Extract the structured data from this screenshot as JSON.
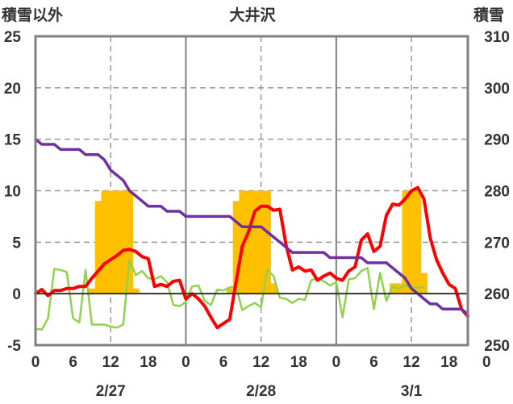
{
  "chart_data": {
    "type": "line",
    "title": "大井沢",
    "ylabel_left": "積雪以外",
    "ylabel_right": "積雪",
    "x_range": [
      0,
      69
    ],
    "x_tick_labels": [
      "0",
      "6",
      "12",
      "18",
      "0",
      "6",
      "12",
      "18",
      "0",
      "6",
      "12",
      "18",
      "0"
    ],
    "x_tick_hours": [
      0,
      6,
      12,
      18,
      24,
      30,
      36,
      42,
      48,
      54,
      60,
      66,
      72
    ],
    "date_labels": [
      {
        "label": "2/27",
        "hour": 12
      },
      {
        "label": "2/28",
        "hour": 36
      },
      {
        "label": "3/1",
        "hour": 60
      }
    ],
    "left_axis": {
      "ylim": [
        -5,
        25
      ],
      "ticks": [
        -5,
        0,
        5,
        10,
        15,
        20,
        25
      ]
    },
    "right_axis": {
      "ylim": [
        250,
        310
      ],
      "ticks": [
        250,
        260,
        270,
        280,
        290,
        300,
        310
      ]
    },
    "colors": {
      "precip": "#ffc000",
      "temperature": "#ff0000",
      "wind": "#92d050",
      "snow_depth": "#7030a0",
      "grid": "#999999",
      "axis": "#808080",
      "zero": "#333333"
    },
    "grid": true,
    "series": [
      {
        "key": "precip",
        "type": "bar",
        "axis": "left",
        "points": [
          [
            9,
            0.5
          ],
          [
            10,
            9
          ],
          [
            11,
            10
          ],
          [
            12,
            10
          ],
          [
            13,
            10
          ],
          [
            14,
            10
          ],
          [
            15,
            10
          ],
          [
            16,
            0.5
          ],
          [
            31,
            0.5
          ],
          [
            32,
            9
          ],
          [
            33,
            10
          ],
          [
            34,
            10
          ],
          [
            35,
            10
          ],
          [
            36,
            10
          ],
          [
            37,
            10
          ],
          [
            38,
            1
          ],
          [
            57,
            1
          ],
          [
            58,
            1
          ],
          [
            59,
            10
          ],
          [
            60,
            10
          ],
          [
            61,
            10
          ],
          [
            62,
            2
          ]
        ]
      },
      {
        "key": "wind",
        "type": "line",
        "axis": "left",
        "points": [
          [
            0,
            -3.4
          ],
          [
            1,
            -3.5
          ],
          [
            2,
            -2.4
          ],
          [
            3,
            2.4
          ],
          [
            4,
            2.3
          ],
          [
            5,
            2.1
          ],
          [
            6,
            -2.4
          ],
          [
            7,
            -2.8
          ],
          [
            8,
            2.3
          ],
          [
            9,
            -3
          ],
          [
            10,
            -3
          ],
          [
            11,
            -3
          ],
          [
            12,
            -3.2
          ],
          [
            13,
            -3.3
          ],
          [
            14,
            -3
          ],
          [
            15,
            3.3
          ],
          [
            16,
            1.8
          ],
          [
            17,
            2.2
          ],
          [
            18,
            1.5
          ],
          [
            19,
            1.4
          ],
          [
            20,
            1.7
          ],
          [
            21,
            1.1
          ],
          [
            22,
            -1.1
          ],
          [
            23,
            -1.2
          ],
          [
            24,
            -0.8
          ],
          [
            25,
            0.7
          ],
          [
            26,
            0.8
          ],
          [
            27,
            -0.7
          ],
          [
            28,
            -1.1
          ],
          [
            29,
            0.4
          ],
          [
            30,
            0.3
          ],
          [
            31,
            0.6
          ],
          [
            32,
            0.7
          ],
          [
            33,
            -1.6
          ],
          [
            34,
            -1.2
          ],
          [
            35,
            -0.9
          ],
          [
            36,
            -1.3
          ],
          [
            37,
            2.3
          ],
          [
            38,
            1.7
          ],
          [
            39,
            -0.4
          ],
          [
            40,
            -0.5
          ],
          [
            41,
            -0.9
          ],
          [
            42,
            -0.5
          ],
          [
            43,
            -0.6
          ],
          [
            44,
            1.3
          ],
          [
            45,
            1.5
          ],
          [
            46,
            1.2
          ],
          [
            47,
            0.8
          ],
          [
            48,
            1.1
          ],
          [
            49,
            -2.3
          ],
          [
            50,
            1.4
          ],
          [
            51,
            1.5
          ],
          [
            52,
            2.2
          ],
          [
            53,
            2.5
          ],
          [
            54,
            -1.5
          ],
          [
            55,
            2
          ],
          [
            56,
            -0.7
          ],
          [
            57,
            0.7
          ],
          [
            58,
            0.5
          ],
          [
            59,
            0.8
          ],
          [
            60,
            0.6
          ],
          [
            61,
            0.6
          ],
          [
            62,
            0.6
          ]
        ]
      },
      {
        "key": "temperature",
        "type": "line",
        "axis": "left",
        "points": [
          [
            0,
            0
          ],
          [
            1,
            0.4
          ],
          [
            2,
            -0.2
          ],
          [
            3,
            0.3
          ],
          [
            4,
            0.3
          ],
          [
            5,
            0.5
          ],
          [
            6,
            0.5
          ],
          [
            7,
            0.7
          ],
          [
            8,
            0.7
          ],
          [
            9,
            1.5
          ],
          [
            10,
            2.2
          ],
          [
            11,
            2.9
          ],
          [
            12,
            3.3
          ],
          [
            13,
            3.7
          ],
          [
            14,
            4.2
          ],
          [
            15,
            4.3
          ],
          [
            16,
            4.1
          ],
          [
            17,
            3.6
          ],
          [
            18,
            3.4
          ],
          [
            19,
            0.7
          ],
          [
            20,
            0.9
          ],
          [
            21,
            0.7
          ],
          [
            22,
            1.2
          ],
          [
            23,
            1.3
          ],
          [
            24,
            -0.5
          ],
          [
            25,
            0
          ],
          [
            26,
            -0.5
          ],
          [
            27,
            -1.2
          ],
          [
            28,
            -2.3
          ],
          [
            29,
            -3.3
          ],
          [
            30,
            -2.9
          ],
          [
            31,
            -2.5
          ],
          [
            32,
            1.1
          ],
          [
            33,
            4.6
          ],
          [
            34,
            6
          ],
          [
            35,
            8
          ],
          [
            36,
            8.5
          ],
          [
            37,
            8.5
          ],
          [
            38,
            8.1
          ],
          [
            39,
            8.2
          ],
          [
            40,
            4.7
          ],
          [
            41,
            2.3
          ],
          [
            42,
            2.6
          ],
          [
            43,
            2.2
          ],
          [
            44,
            2.3
          ],
          [
            45,
            1.3
          ],
          [
            46,
            1.7
          ],
          [
            47,
            2
          ],
          [
            48,
            1.5
          ],
          [
            49,
            1.3
          ],
          [
            50,
            2.2
          ],
          [
            51,
            2.6
          ],
          [
            52,
            5.2
          ],
          [
            53,
            5.8
          ],
          [
            54,
            4.1
          ],
          [
            55,
            4.6
          ],
          [
            56,
            7.6
          ],
          [
            57,
            8.7
          ],
          [
            58,
            8.6
          ],
          [
            59,
            9.2
          ],
          [
            60,
            10
          ],
          [
            61,
            10.3
          ],
          [
            62,
            9.2
          ],
          [
            63,
            5.4
          ],
          [
            64,
            3.3
          ],
          [
            65,
            2
          ],
          [
            66,
            0.9
          ],
          [
            67,
            0.5
          ],
          [
            68,
            -1.5
          ],
          [
            69,
            -2.2
          ]
        ]
      },
      {
        "key": "snow_depth",
        "type": "line",
        "axis": "right",
        "points": [
          [
            0,
            290
          ],
          [
            1,
            289
          ],
          [
            2,
            289
          ],
          [
            3,
            289
          ],
          [
            4,
            288
          ],
          [
            5,
            288
          ],
          [
            6,
            288
          ],
          [
            7,
            288
          ],
          [
            8,
            287
          ],
          [
            9,
            287
          ],
          [
            10,
            287
          ],
          [
            11,
            286
          ],
          [
            12,
            284
          ],
          [
            13,
            283
          ],
          [
            14,
            282
          ],
          [
            15,
            280
          ],
          [
            16,
            279
          ],
          [
            17,
            278
          ],
          [
            18,
            277
          ],
          [
            19,
            277
          ],
          [
            20,
            277
          ],
          [
            21,
            276
          ],
          [
            22,
            276
          ],
          [
            23,
            276
          ],
          [
            24,
            275
          ],
          [
            25,
            275
          ],
          [
            26,
            275
          ],
          [
            27,
            275
          ],
          [
            28,
            275
          ],
          [
            29,
            275
          ],
          [
            30,
            275
          ],
          [
            31,
            275
          ],
          [
            32,
            274
          ],
          [
            33,
            273
          ],
          [
            34,
            273
          ],
          [
            35,
            273
          ],
          [
            36,
            273
          ],
          [
            37,
            272
          ],
          [
            38,
            271
          ],
          [
            39,
            270
          ],
          [
            40,
            269
          ],
          [
            41,
            268
          ],
          [
            42,
            268
          ],
          [
            43,
            268
          ],
          [
            44,
            268
          ],
          [
            45,
            268
          ],
          [
            46,
            268
          ],
          [
            47,
            267
          ],
          [
            48,
            267
          ],
          [
            49,
            267
          ],
          [
            50,
            267
          ],
          [
            51,
            267
          ],
          [
            52,
            267
          ],
          [
            53,
            266
          ],
          [
            54,
            266
          ],
          [
            55,
            266
          ],
          [
            56,
            266
          ],
          [
            57,
            265
          ],
          [
            58,
            264
          ],
          [
            59,
            263
          ],
          [
            60,
            261
          ],
          [
            61,
            260
          ],
          [
            62,
            259
          ],
          [
            63,
            258
          ],
          [
            64,
            258
          ],
          [
            65,
            257
          ],
          [
            66,
            257
          ],
          [
            67,
            257
          ],
          [
            68,
            257
          ],
          [
            69,
            256
          ]
        ]
      }
    ]
  }
}
